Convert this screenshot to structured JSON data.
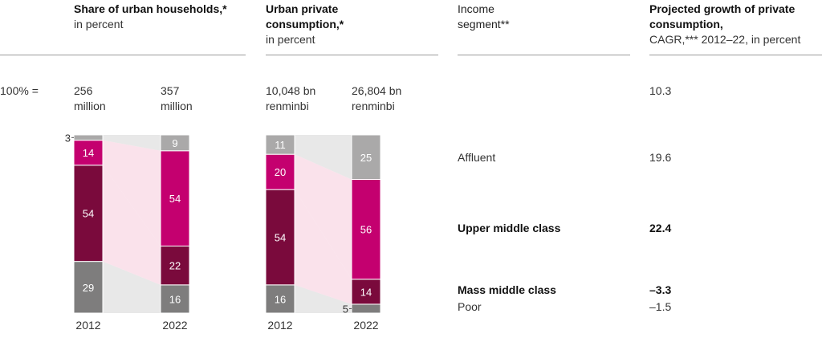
{
  "headers": {
    "households": {
      "title": "Share of urban households,*",
      "sub": "in percent"
    },
    "consumption": {
      "title": "Urban private consumption,*",
      "sub": "in percent"
    },
    "segment": {
      "title": "Income segment**"
    },
    "growth": {
      "title": "Projected growth of private consumption,",
      "sub": "CAGR,*** 2012–22, in percent"
    }
  },
  "totals": {
    "label": "100% =",
    "hh_2012": {
      "value": "256",
      "unit": "million"
    },
    "hh_2022": {
      "value": "357",
      "unit": "million"
    },
    "cons_2012": {
      "value": "10,048 bn",
      "unit": "renminbi"
    },
    "cons_2022": {
      "value": "26,804 bn",
      "unit": "renminbi"
    }
  },
  "colors": {
    "affluent": "#aaa9a9",
    "upper": "#c4006f",
    "mass": "#7a0a3c",
    "poor": "#7e7d7d",
    "bridge_pink": "#f7d3e0",
    "bridge_grey": "#e0e0e0"
  },
  "chart_data": {
    "type": "bar",
    "stacked": true,
    "segments": [
      "Poor",
      "Mass middle class",
      "Upper middle class",
      "Affluent"
    ],
    "charts": [
      {
        "name": "Share of urban households",
        "categories": [
          "2012",
          "2022"
        ],
        "series": [
          {
            "name": "Poor",
            "values": [
              29,
              16
            ]
          },
          {
            "name": "Mass middle class",
            "values": [
              54,
              22
            ]
          },
          {
            "name": "Upper middle class",
            "values": [
              14,
              54
            ]
          },
          {
            "name": "Affluent",
            "values": [
              3,
              9
            ]
          }
        ]
      },
      {
        "name": "Urban private consumption",
        "categories": [
          "2012",
          "2022"
        ],
        "series": [
          {
            "name": "Poor",
            "values": [
              16,
              5
            ]
          },
          {
            "name": "Mass middle class",
            "values": [
              54,
              14
            ]
          },
          {
            "name": "Upper middle class",
            "values": [
              20,
              56
            ]
          },
          {
            "name": "Affluent",
            "values": [
              11,
              25
            ]
          }
        ]
      }
    ],
    "growth_rows": [
      {
        "segment": "",
        "value": "10.3",
        "bold": false
      },
      {
        "segment": "Affluent",
        "value": "19.6",
        "bold": false
      },
      {
        "segment": "Upper middle class",
        "value": "22.4",
        "bold": true
      },
      {
        "segment": "Mass middle class",
        "value": "–3.3",
        "bold": true
      },
      {
        "segment": "Poor",
        "value": "–1.5",
        "bold": false
      }
    ]
  }
}
